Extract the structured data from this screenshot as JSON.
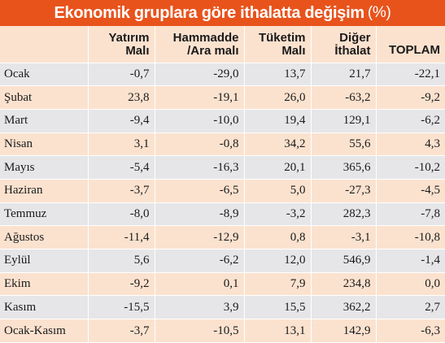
{
  "title": "Ekonomik gruplara göre ithalatta değişim",
  "unit": "(%)",
  "columns": [
    "",
    "Yatırım\nMalı",
    "Hammadde\n/Ara malı",
    "Tüketim\nMalı",
    "Diğer\nİthalat",
    "TOPLAM"
  ],
  "rows": [
    [
      "Ocak",
      "-0,7",
      "-29,0",
      "13,7",
      "21,7",
      "-22,1"
    ],
    [
      "Şubat",
      "23,8",
      "-19,1",
      "26,0",
      "-63,2",
      "-9,2"
    ],
    [
      "Mart",
      "-9,4",
      "-10,0",
      "19,4",
      "129,1",
      "-6,2"
    ],
    [
      "Nisan",
      "3,1",
      "-0,8",
      "34,2",
      "55,6",
      "4,3"
    ],
    [
      "Mayıs",
      "-5,4",
      "-16,3",
      "20,1",
      "365,6",
      "-10,2"
    ],
    [
      "Haziran",
      "-3,7",
      "-6,5",
      "5,0",
      "-27,3",
      "-4,5"
    ],
    [
      "Temmuz",
      "-8,0",
      "-8,9",
      "-3,2",
      "282,3",
      "-7,8"
    ],
    [
      "Ağustos",
      "-11,4",
      "-12,9",
      "0,8",
      "-3,1",
      "-10,8"
    ],
    [
      "Eylül",
      "5,6",
      "-6,2",
      "12,0",
      "546,9",
      "-1,4"
    ],
    [
      "Ekim",
      "-9,2",
      "0,1",
      "7,9",
      "234,8",
      "0,0"
    ],
    [
      "Kasım",
      "-15,5",
      "3,9",
      "15,5",
      "362,2",
      "2,7"
    ],
    [
      "Ocak-Kasım",
      "-3,7",
      "-10,5",
      "13,1",
      "142,9",
      "-6,3"
    ]
  ],
  "colors": {
    "title_bg": "#e8531c",
    "row_odd": "#e6e6e8",
    "row_even": "#fbe2cf"
  }
}
